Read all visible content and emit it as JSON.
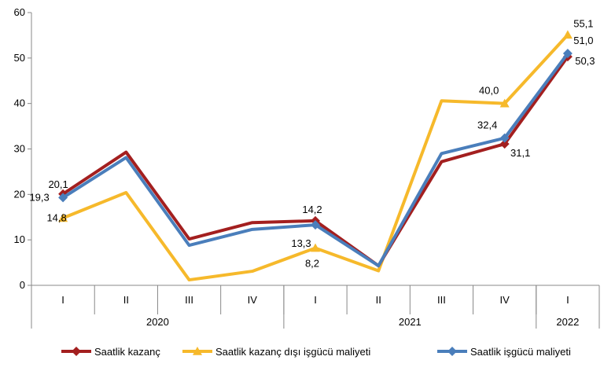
{
  "chart_data": {
    "type": "line",
    "title": "",
    "xlabel": "",
    "ylabel": "",
    "ylim": [
      0,
      60
    ],
    "yticks": [
      "0",
      "10",
      "20",
      "30",
      "40",
      "50",
      "60"
    ],
    "quarters": [
      "I",
      "II",
      "III",
      "IV",
      "I",
      "II",
      "III",
      "IV",
      "I"
    ],
    "years": [
      {
        "label": "2020",
        "span": 4
      },
      {
        "label": "2021",
        "span": 4
      },
      {
        "label": "2022",
        "span": 1
      }
    ],
    "grid": false,
    "legend_position": "bottom",
    "series": [
      {
        "name": "Saatlik kazanç",
        "color": "#A31F1F",
        "marker": "diamond",
        "values": [
          20.1,
          29.3,
          10.2,
          13.8,
          14.2,
          4.3,
          27.2,
          31.1,
          50.3
        ],
        "labels": [
          {
            "i": 0,
            "text": "20,1"
          },
          {
            "i": 4,
            "text": "14,2"
          },
          {
            "i": 7,
            "text": "31,1"
          },
          {
            "i": 8,
            "text": "50,3"
          }
        ]
      },
      {
        "name": "Saatlik kazanç dışı işgücü maliyeti",
        "color": "#F6B92B",
        "marker": "triangle",
        "values": [
          14.8,
          20.4,
          1.2,
          3.1,
          8.2,
          3.2,
          40.6,
          40.0,
          55.1
        ],
        "labels": [
          {
            "i": 0,
            "text": "14,8"
          },
          {
            "i": 4,
            "text": "8,2"
          },
          {
            "i": 7,
            "text": "40,0"
          },
          {
            "i": 8,
            "text": "55,1"
          }
        ]
      },
      {
        "name": "Saatlik işgücü maliyeti",
        "color": "#4A7EBB",
        "marker": "diamond",
        "values": [
          19.3,
          28.1,
          8.8,
          12.3,
          13.3,
          4.3,
          29.0,
          32.4,
          51.0
        ],
        "labels": [
          {
            "i": 0,
            "text": "19,3"
          },
          {
            "i": 4,
            "text": "13,3"
          },
          {
            "i": 7,
            "text": "32,4"
          },
          {
            "i": 8,
            "text": "51,0"
          }
        ]
      }
    ]
  }
}
